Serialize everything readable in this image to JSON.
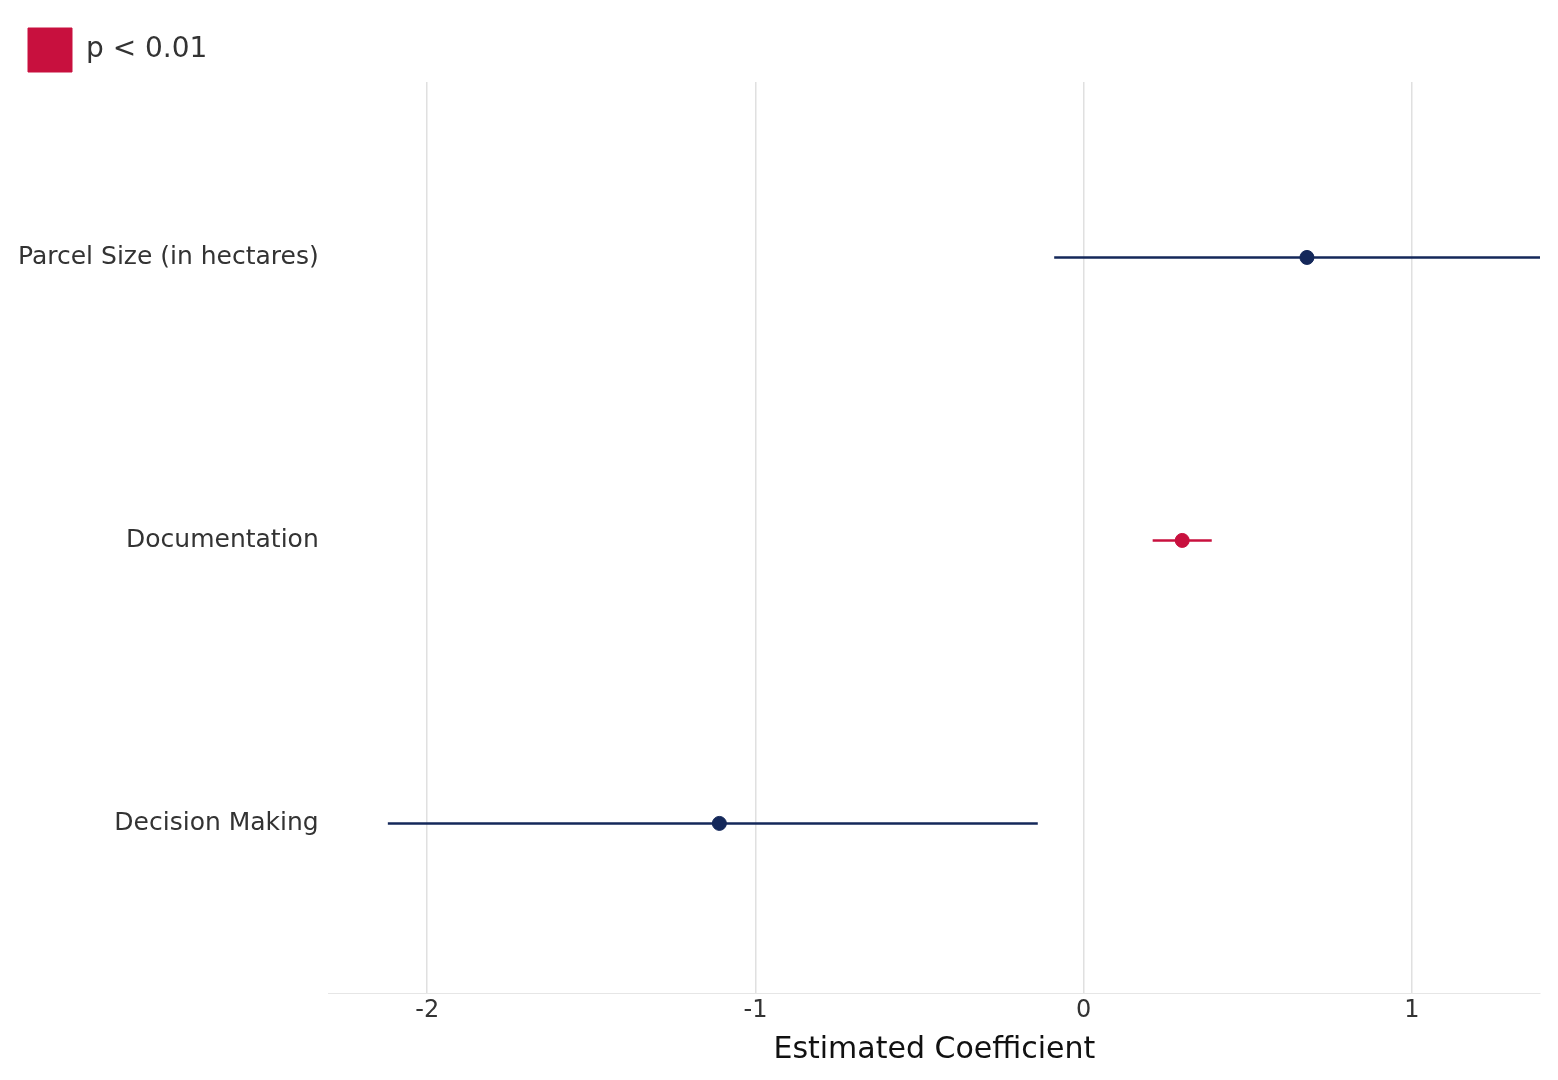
{
  "chart_data": {
    "type": "scatter",
    "orientation": "horizontal",
    "xlabel": "Estimated Coefficient",
    "categories": [
      "Parcel Size (in hectares)",
      "Documentation",
      "Decision Making"
    ],
    "series": [
      {
        "color": "#14285a",
        "values": [
          0.68,
          null,
          -1.11
        ],
        "errors": [
          [
            -0.09,
            1.39
          ],
          null,
          [
            -2.12,
            -0.14
          ]
        ]
      },
      {
        "name": "p < 0.01",
        "color": "#c8103e",
        "values": [
          null,
          0.3,
          null
        ],
        "errors": [
          null,
          [
            0.21,
            0.39
          ],
          null
        ]
      }
    ],
    "xlim": [
      -2.3,
      1.39
    ],
    "xticks": [
      -2,
      -1,
      0,
      1
    ],
    "grid": "x",
    "legend": "top left",
    "marker": "circle"
  }
}
